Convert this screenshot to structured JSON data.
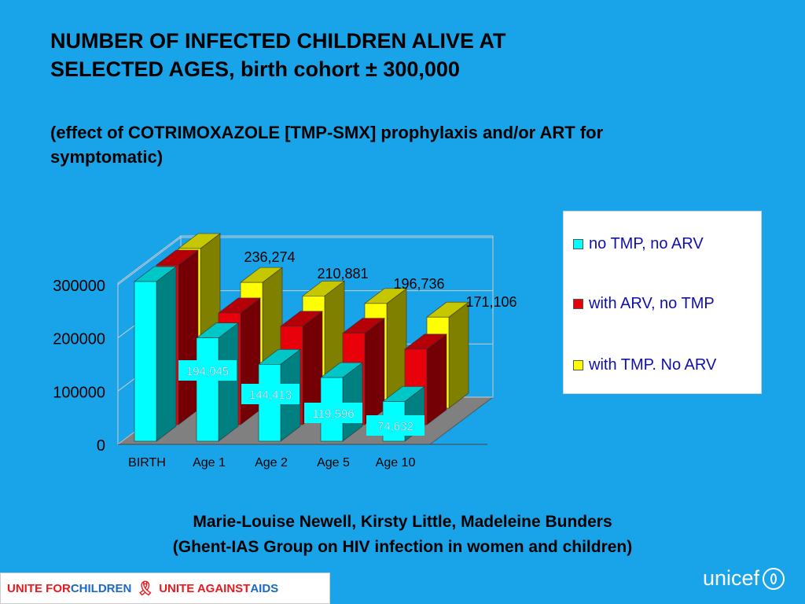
{
  "title_line1": "NUMBER OF INFECTED CHILDREN ALIVE AT",
  "title_line2": "SELECTED AGES, birth cohort ± 300,000",
  "subtitle_line1": "(effect of COTRIMOXAZOLE [TMP-SMX] prophylaxis and/or ART for",
  "subtitle_line2": "symptomatic)",
  "credit_line1": "Marie-Louise Newell, Kirsty Little, Madeleine Bunders",
  "credit_line2": "(Ghent-IAS Group on HIV infection in women and children)",
  "footer": {
    "unite_for": "UNITE FOR ",
    "children": "CHILDREN",
    "unite_against": "UNITE AGAINST ",
    "aids": "AIDS",
    "ribbon_icon": "ribbon-icon"
  },
  "logo": {
    "text": "unicef",
    "icon": "globe-icon"
  },
  "colors": {
    "background": "#19a3e8",
    "series_cyan": "#00ffff",
    "series_red": "#e8000a",
    "series_yellow": "#ffff00",
    "floor": "#808080",
    "wall": "#19a3e8"
  },
  "chart_data": {
    "type": "bar",
    "style": "3d-clustered",
    "categories": [
      "BIRTH",
      "Age 1",
      "Age 2",
      "Age 5",
      "Age 10"
    ],
    "ylim": [
      0,
      300000
    ],
    "yticks": [
      "0",
      "100000",
      "200000",
      "300000"
    ],
    "grid": true,
    "legend_position": "right",
    "series": [
      {
        "name": "no TMP, no ARV",
        "color": "#00ffff",
        "values": [
          300000,
          194045,
          144413,
          119596,
          74632
        ],
        "labels": [
          "",
          "194,045",
          "144,413",
          "119,596",
          "74,632"
        ]
      },
      {
        "name": "with ARV, no TMP",
        "color": "#e8000a",
        "values": [
          300000,
          210000,
          185000,
          172000,
          142000
        ],
        "labels": [
          "",
          "",
          "",
          "",
          ""
        ]
      },
      {
        "name": "with TMP. No ARV",
        "color": "#ffff00",
        "values": [
          300000,
          236274,
          210881,
          196736,
          171106
        ],
        "labels": [
          "",
          "236,274",
          "210,881",
          "196,736",
          "171,106"
        ]
      }
    ]
  }
}
